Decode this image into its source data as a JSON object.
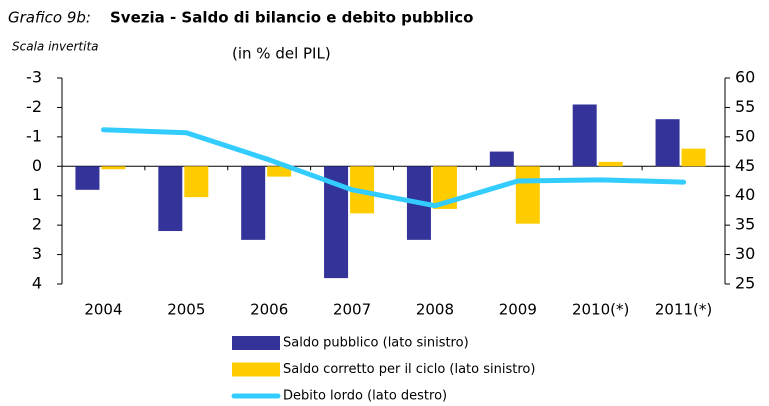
{
  "chart_data": {
    "type": "bar-line",
    "figure_label": "Grafico 9b:",
    "title": "Svezia - Saldo di bilancio e debito pubblico",
    "subtitle": "(in % del PIL)",
    "annotation": "Scala invertita",
    "categories": [
      "2004",
      "2005",
      "2006",
      "2007",
      "2008",
      "2009",
      "2010(*)",
      "2011(*)"
    ],
    "series": [
      {
        "name": "Saldo pubblico (lato sinistro)",
        "type": "bar",
        "color": "#333399",
        "values": [
          0.8,
          2.2,
          2.5,
          3.8,
          2.5,
          -0.5,
          -2.1,
          -1.6
        ]
      },
      {
        "name": "Saldo corretto per il ciclo (lato sinistro)",
        "type": "bar",
        "color": "#ffcc00",
        "values": [
          0.1,
          1.05,
          0.35,
          1.6,
          1.45,
          1.95,
          -0.15,
          -0.6
        ]
      },
      {
        "name": "Debito lordo (lato destro)",
        "type": "line",
        "axis": "y2",
        "color": "#33ccff",
        "values": [
          51.2,
          50.7,
          46.1,
          41.0,
          38.3,
          42.5,
          42.7,
          42.3
        ]
      }
    ],
    "ylim": [
      -3,
      4
    ],
    "y_inverted": true,
    "yticks": [
      -3,
      -2,
      -1,
      0,
      1,
      2,
      3,
      4
    ],
    "y2lim": [
      25,
      60
    ],
    "y2ticks": [
      25,
      30,
      35,
      40,
      45,
      50,
      55,
      60
    ],
    "grid": false,
    "legend": "bottom"
  }
}
